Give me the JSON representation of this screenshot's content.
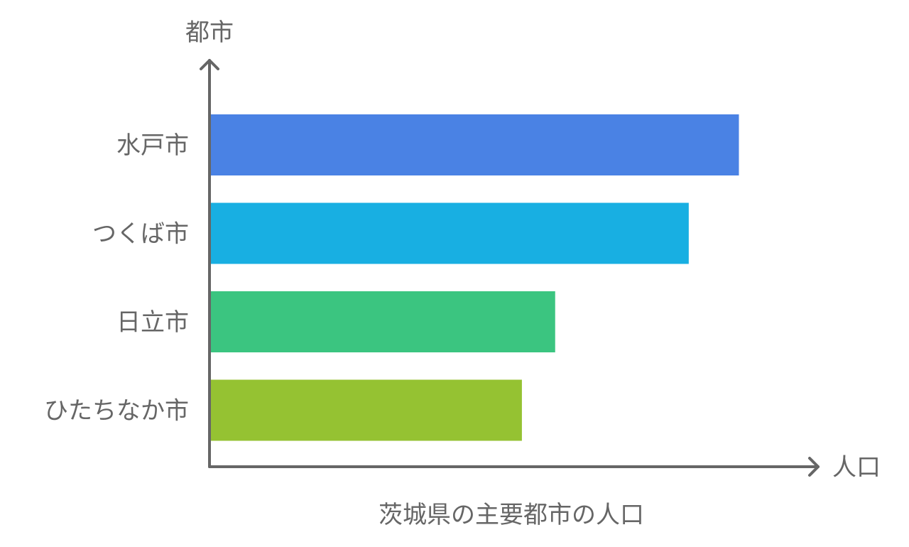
{
  "chart_data": {
    "type": "bar",
    "orientation": "horizontal",
    "title": "茨城県の主要都市の人口",
    "xlabel": "人口",
    "ylabel": "都市",
    "categories": [
      "水戸市",
      "つくば市",
      "日立市",
      "ひたちなか市"
    ],
    "values": [
      100,
      90.5,
      65.2,
      58.9
    ],
    "xlim": [
      0,
      115
    ],
    "colors": [
      "#4A82E4",
      "#18AFE2",
      "#3BC580",
      "#95C232"
    ],
    "grid": false,
    "legend": "none",
    "axis_color": "#666666"
  }
}
